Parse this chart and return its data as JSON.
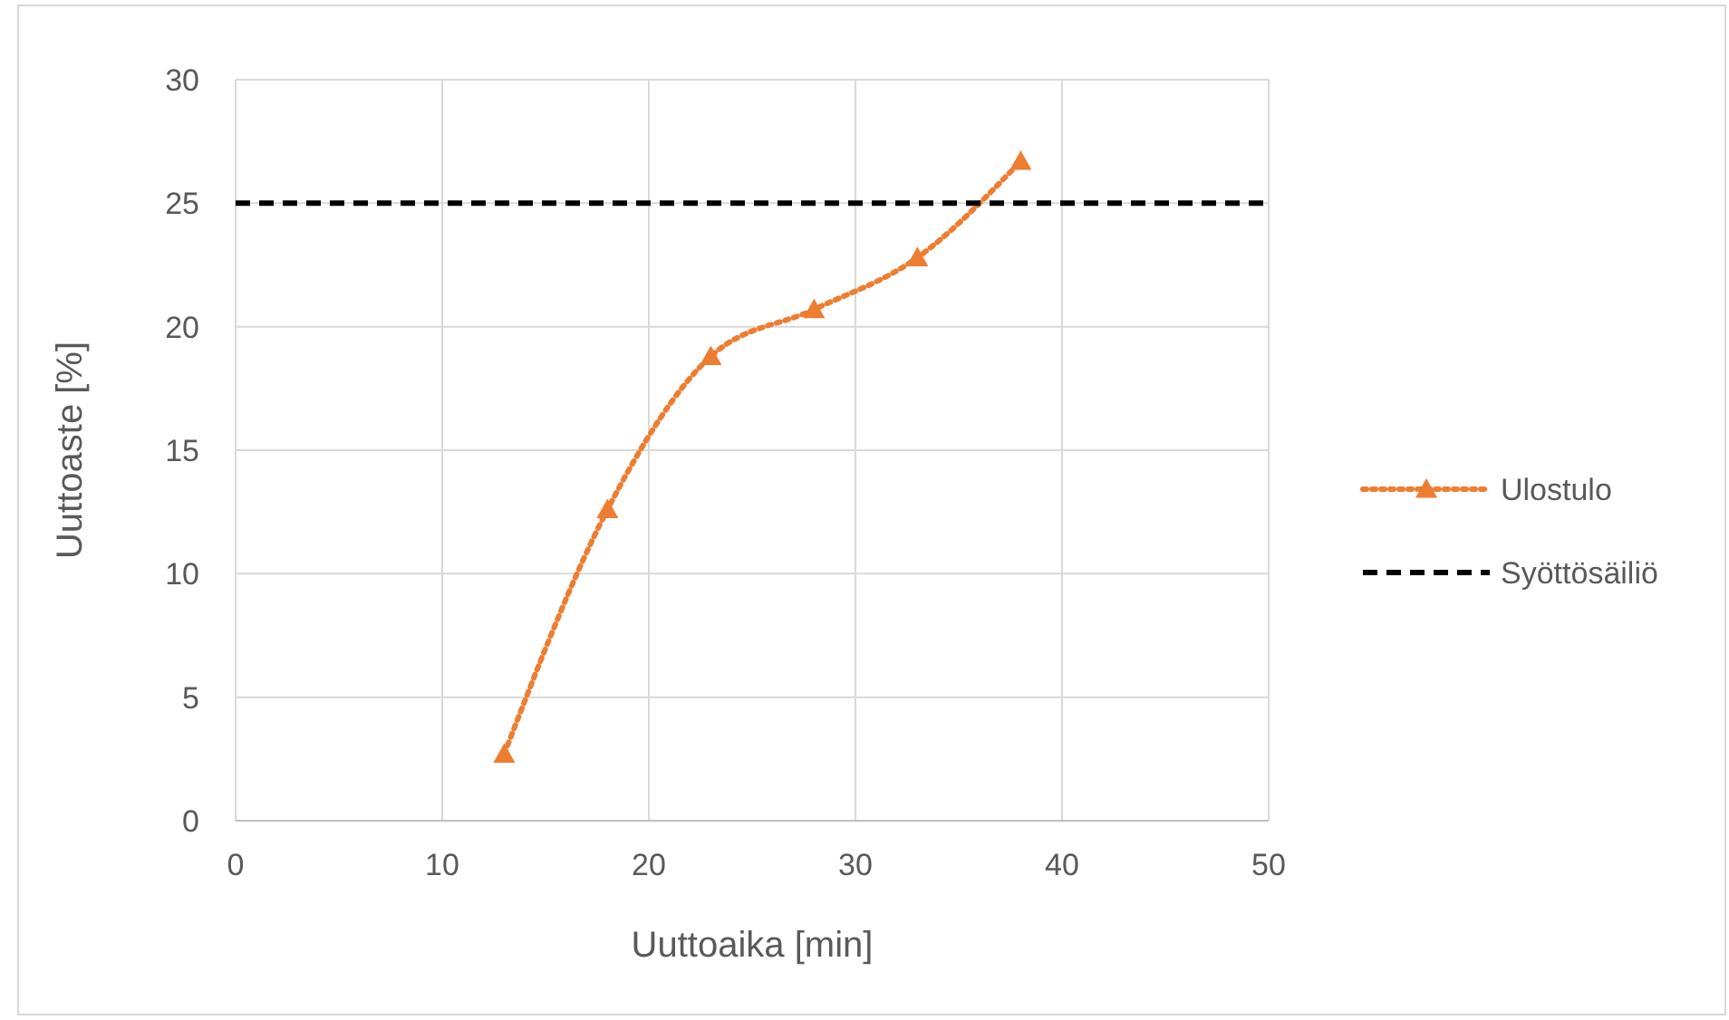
{
  "chart_data": {
    "type": "line",
    "xlabel": "Uuttoaika [min]",
    "ylabel": "Uuttoaste [%]",
    "xlim": [
      0,
      50
    ],
    "xticks": [
      0,
      10,
      20,
      30,
      40,
      50
    ],
    "ylim": [
      0,
      30
    ],
    "yticks": [
      0,
      5,
      10,
      15,
      20,
      25,
      30
    ],
    "grid": true,
    "legend": "right",
    "series": [
      {
        "name": "Ulostulo",
        "color": "#ed7d31",
        "x": [
          13,
          18,
          23,
          28,
          33,
          38
        ],
        "values": [
          2.7,
          12.6,
          18.8,
          20.7,
          22.8,
          26.7
        ],
        "marker": "triangle",
        "line_style": "dotted"
      },
      {
        "name": "Syöttösäiliö",
        "color": "#000000",
        "x": [
          0,
          50
        ],
        "values": [
          25,
          25
        ],
        "marker": "none",
        "line_style": "dashed"
      }
    ]
  }
}
